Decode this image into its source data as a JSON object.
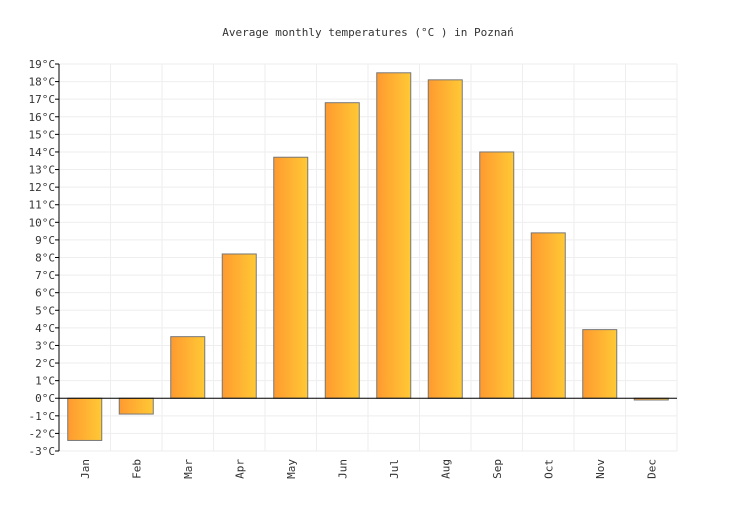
{
  "chart_data": {
    "type": "bar",
    "title": "Average monthly temperatures (°C ) in Poznań",
    "xlabel": "",
    "ylabel": "",
    "categories": [
      "Jan",
      "Feb",
      "Mar",
      "Apr",
      "May",
      "Jun",
      "Jul",
      "Aug",
      "Sep",
      "Oct",
      "Nov",
      "Dec"
    ],
    "values": [
      -2.4,
      -0.9,
      3.5,
      8.2,
      13.7,
      16.8,
      18.5,
      18.1,
      14.0,
      9.4,
      3.9,
      -0.1
    ],
    "ylim": [
      -3,
      19
    ],
    "ytick_step": 1,
    "ytick_suffix": "°C",
    "grid": true,
    "bar_colors": [
      "#ff9a30",
      "#ffc935"
    ],
    "bar_stroke": "#777777",
    "grid_color": "#eeeeee"
  }
}
